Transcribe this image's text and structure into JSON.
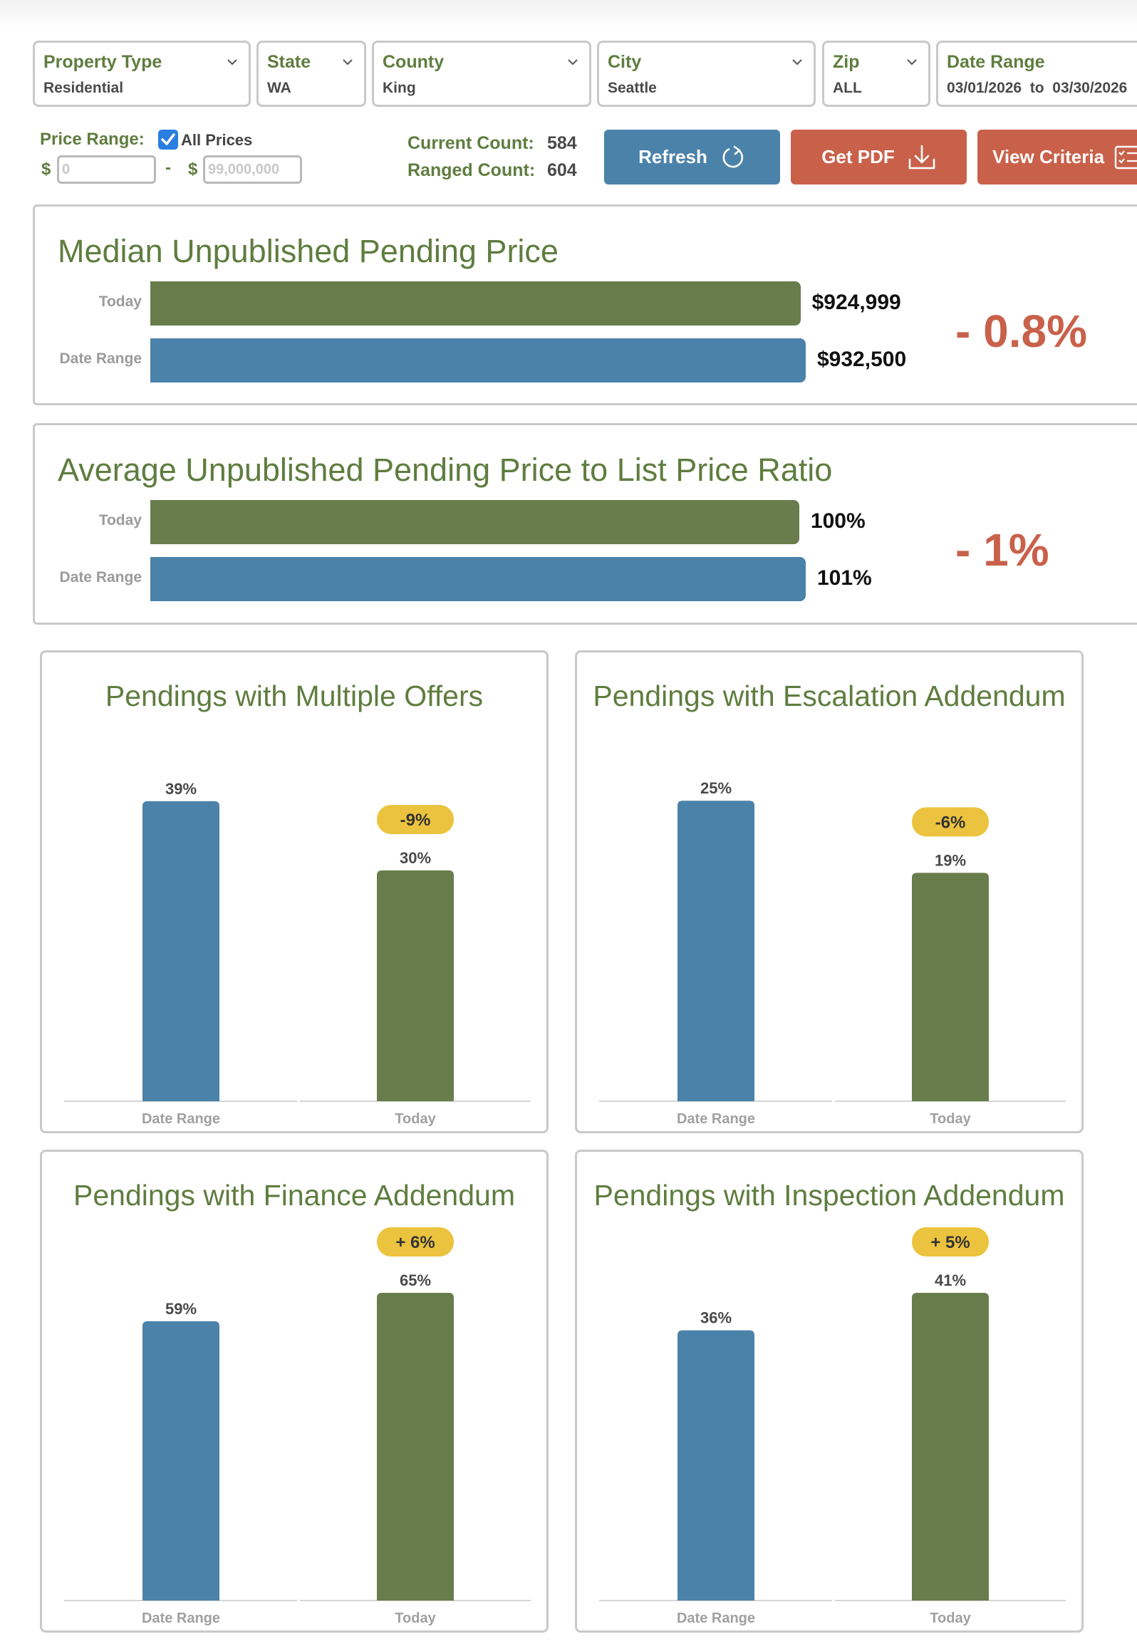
{
  "filters": {
    "property_type": {
      "label": "Property Type",
      "value": "Residential"
    },
    "state": {
      "label": "State",
      "value": "WA"
    },
    "county": {
      "label": "County",
      "value": "King"
    },
    "city": {
      "label": "City",
      "value": "Seattle"
    },
    "zip": {
      "label": "Zip",
      "value": "ALL"
    },
    "date_range": {
      "label": "Date Range",
      "value": "03/01/2026  to  03/30/2026"
    }
  },
  "price_range": {
    "label": "Price Range:",
    "all_prices_label": "All Prices",
    "all_prices_checked": true,
    "currency": "$",
    "separator": "-",
    "min_placeholder": "0",
    "max_placeholder": "99,000,000"
  },
  "counts": {
    "current_label": "Current Count:",
    "current_value": "584",
    "ranged_label": "Ranged Count:",
    "ranged_value": "604"
  },
  "buttons": {
    "refresh": "Refresh",
    "pdf": "Get PDF",
    "criteria": "View Criteria"
  },
  "colors": {
    "green": "#687d4b",
    "blue": "#4b82aa",
    "orange": "#c9614a",
    "badge": "#ecc33e",
    "label_green": "#5f7d3f"
  },
  "median_panel": {
    "title": "Median Unpublished Pending Price",
    "today_label": "Today",
    "today_value": "$924,999",
    "today_amount": 924999,
    "range_label": "Date Range",
    "range_value": "$932,500",
    "range_amount": 932500,
    "delta": "- 0.8%"
  },
  "ratio_panel": {
    "title": "Average Unpublished Pending Price to List Price Ratio",
    "today_label": "Today",
    "today_value": "100%",
    "today_amount": 100,
    "range_label": "Date Range",
    "range_value": "101%",
    "range_amount": 101,
    "delta": "- 1%"
  },
  "chart_data": [
    {
      "type": "bar",
      "title": "Pendings with Multiple Offers",
      "categories": [
        "Date Range",
        "Today"
      ],
      "values": [
        39,
        30
      ],
      "labels": [
        "39%",
        "30%"
      ],
      "change": "-9%",
      "ylim": [
        0,
        40
      ]
    },
    {
      "type": "bar",
      "title": "Pendings with Escalation Addendum",
      "categories": [
        "Date Range",
        "Today"
      ],
      "values": [
        25,
        19
      ],
      "labels": [
        "25%",
        "19%"
      ],
      "change": "-6%",
      "ylim": [
        0,
        25.6
      ]
    },
    {
      "type": "bar",
      "title": "Pendings with Finance Addendum",
      "categories": [
        "Date Range",
        "Today"
      ],
      "values": [
        59,
        65
      ],
      "labels": [
        "59%",
        "65%"
      ],
      "change": "+ 6%",
      "ylim": [
        0,
        65
      ]
    },
    {
      "type": "bar",
      "title": "Pendings with Inspection Addendum",
      "categories": [
        "Date Range",
        "Today"
      ],
      "values": [
        36,
        41
      ],
      "labels": [
        "36%",
        "41%"
      ],
      "change": "+ 5%",
      "ylim": [
        0,
        41
      ]
    }
  ]
}
